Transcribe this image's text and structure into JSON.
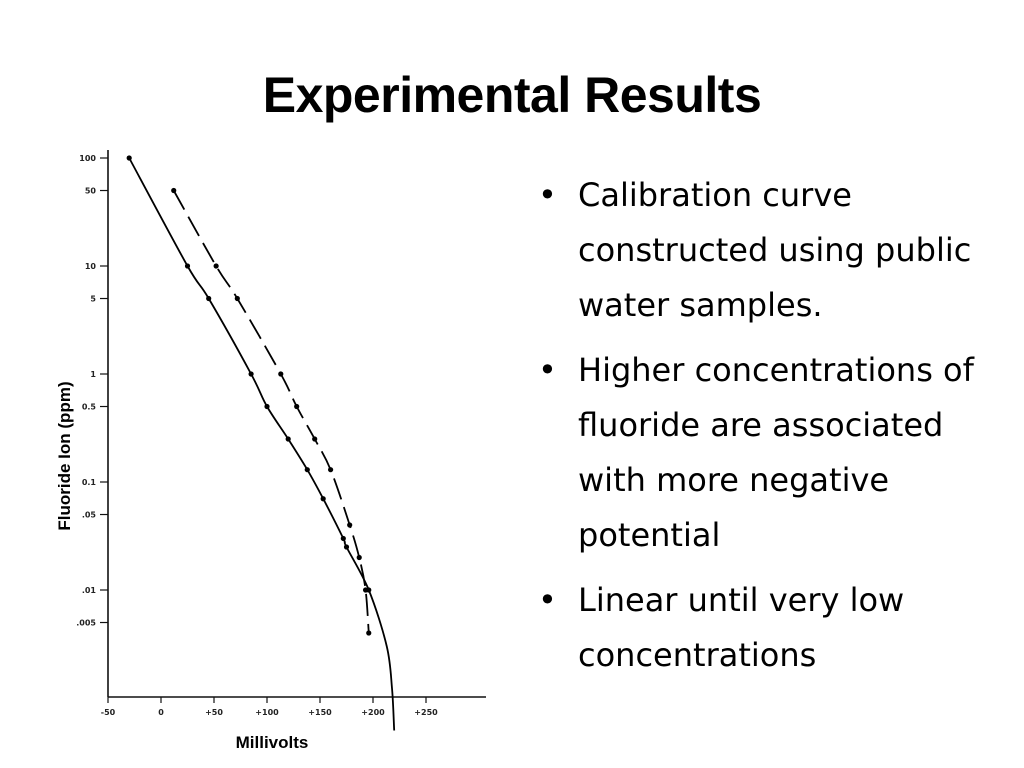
{
  "slide": {
    "title": "Experimental Results",
    "bullets": [
      "Calibration curve constructed using public water samples.",
      "Higher concentrations of fluoride are associated with more negative potential",
      "Linear until very low concentrations"
    ]
  },
  "chart_data": {
    "type": "line",
    "xlabel": "Millivolts",
    "ylabel": "Fluoride Ion (ppm)",
    "y_scale": "log",
    "xlim": [
      -50,
      300
    ],
    "ylim": [
      0.0005,
      100
    ],
    "x_ticks": [
      -50,
      0,
      50,
      100,
      150,
      200,
      250
    ],
    "x_tick_labels": [
      "-50",
      "0",
      "+50",
      "+100",
      "+150",
      "+200",
      "+250"
    ],
    "y_ticks": [
      100,
      50,
      10,
      5,
      1,
      0.5,
      0.1,
      0.05,
      0.01,
      0.005
    ],
    "y_tick_labels": [
      "100",
      "50",
      "10",
      "5",
      "1",
      "0.5",
      "0.1",
      ".05",
      ".01",
      ".005"
    ],
    "grid": false,
    "series": [
      {
        "style": "solid",
        "color": "#000000",
        "markers": true,
        "points": [
          {
            "x": -30,
            "y": 100
          },
          {
            "x": 25,
            "y": 10
          },
          {
            "x": 45,
            "y": 5
          },
          {
            "x": 85,
            "y": 1
          },
          {
            "x": 100,
            "y": 0.5
          },
          {
            "x": 120,
            "y": 0.25
          },
          {
            "x": 138,
            "y": 0.13
          },
          {
            "x": 153,
            "y": 0.07
          },
          {
            "x": 172,
            "y": 0.03
          },
          {
            "x": 175,
            "y": 0.025
          },
          {
            "x": 196,
            "y": 0.01
          },
          {
            "x": 213,
            "y": 0.003
          },
          {
            "x": 218,
            "y": 0.0012
          },
          {
            "x": 220,
            "y": 0.0005
          }
        ]
      },
      {
        "style": "dashed",
        "color": "#000000",
        "markers": true,
        "points": [
          {
            "x": 12,
            "y": 50
          },
          {
            "x": 52,
            "y": 10
          },
          {
            "x": 72,
            "y": 5
          },
          {
            "x": 113,
            "y": 1
          },
          {
            "x": 128,
            "y": 0.5
          },
          {
            "x": 145,
            "y": 0.25
          },
          {
            "x": 160,
            "y": 0.13
          },
          {
            "x": 178,
            "y": 0.04
          },
          {
            "x": 187,
            "y": 0.02
          },
          {
            "x": 193,
            "y": 0.01
          },
          {
            "x": 196,
            "y": 0.004
          }
        ]
      }
    ]
  }
}
